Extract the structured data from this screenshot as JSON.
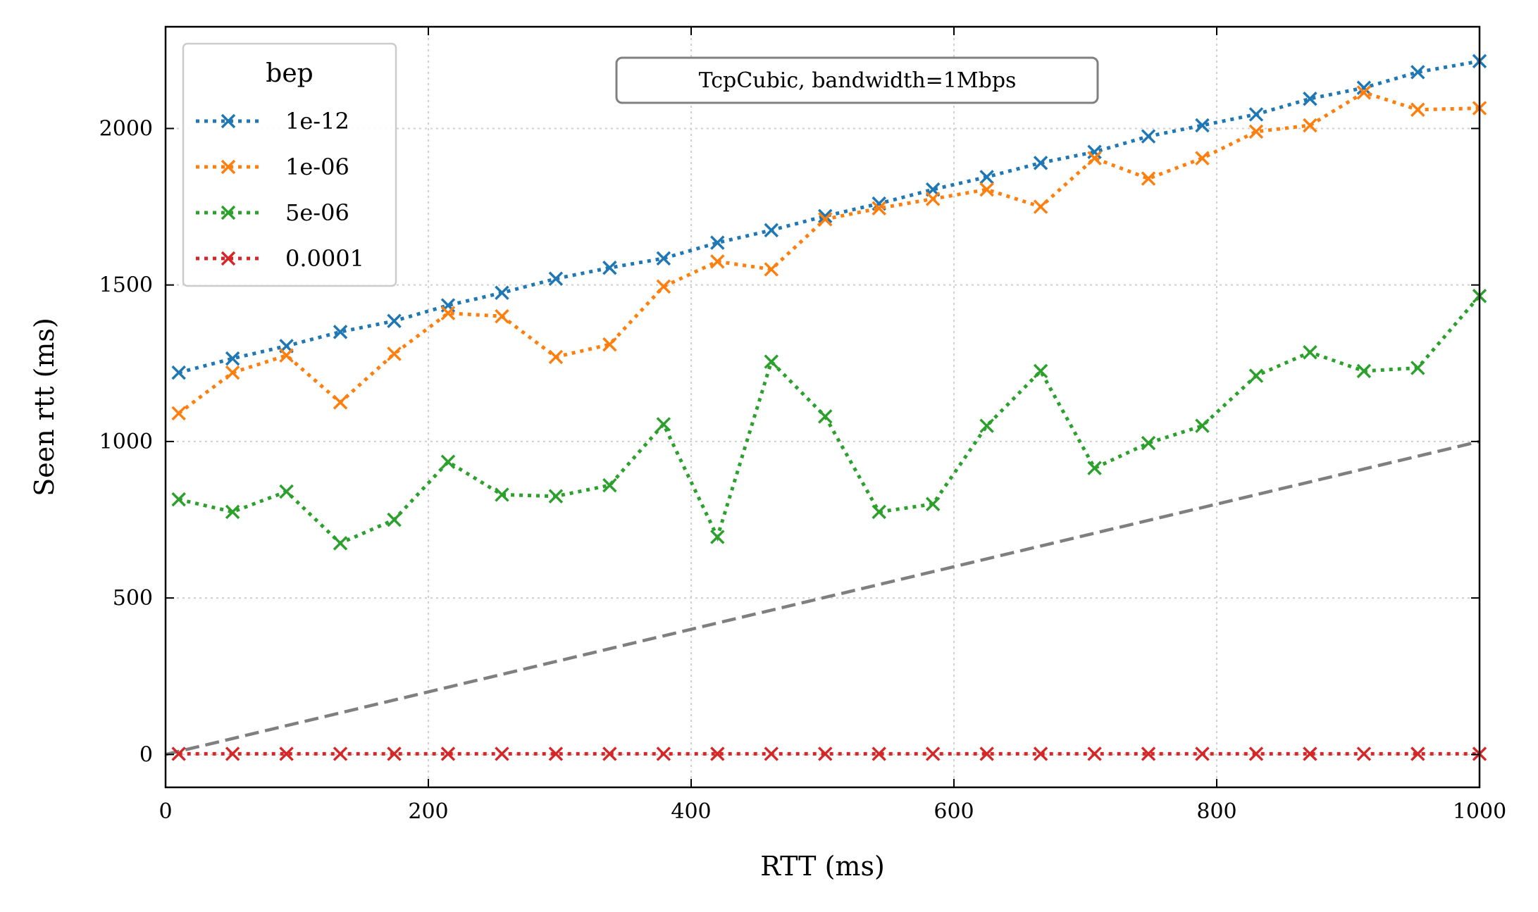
{
  "chart_data": {
    "type": "line",
    "title": "",
    "annotation": "TcpCubic, bandwidth=1Mbps",
    "xlabel": "RTT (ms)",
    "ylabel": "Seen rtt (ms)",
    "xlim": [
      0,
      1000
    ],
    "ylim": [
      -105,
      2325
    ],
    "xticks": [
      0,
      200,
      400,
      600,
      800,
      1000
    ],
    "yticks": [
      0,
      500,
      1000,
      1500,
      2000
    ],
    "grid": true,
    "legend": {
      "title": "bep",
      "placement": "top-left"
    },
    "x": [
      10,
      51,
      92,
      133,
      174,
      215,
      256,
      297,
      338,
      379,
      420,
      461,
      502,
      543,
      584,
      625,
      666,
      707,
      748,
      789,
      830,
      871,
      912,
      953,
      1000
    ],
    "series": [
      {
        "name": "1e-12",
        "color": "#1f77b4",
        "values": [
          1220,
          1265,
          1305,
          1350,
          1385,
          1435,
          1475,
          1520,
          1555,
          1585,
          1635,
          1675,
          1720,
          1760,
          1805,
          1845,
          1890,
          1925,
          1975,
          2010,
          2045,
          2095,
          2130,
          2180,
          2215
        ]
      },
      {
        "name": "1e-06",
        "color": "#ff7f0e",
        "values": [
          1090,
          1220,
          1275,
          1125,
          1280,
          1410,
          1400,
          1270,
          1310,
          1495,
          1575,
          1550,
          1710,
          1745,
          1775,
          1805,
          1750,
          1905,
          1840,
          1905,
          1990,
          2010,
          2115,
          2060,
          2065
        ]
      },
      {
        "name": "5e-06",
        "color": "#2ca02c",
        "values": [
          815,
          775,
          840,
          675,
          750,
          935,
          830,
          825,
          860,
          1055,
          695,
          1255,
          1080,
          775,
          800,
          1050,
          1225,
          915,
          995,
          1050,
          1210,
          1285,
          1225,
          1235,
          1465
        ]
      },
      {
        "name": "0.0001",
        "color": "#d62728",
        "values": [
          2,
          2,
          2,
          2,
          2,
          2,
          2,
          2,
          2,
          2,
          2,
          2,
          2,
          2,
          2,
          2,
          2,
          2,
          2,
          2,
          2,
          2,
          2,
          2,
          2
        ]
      }
    ],
    "reference_line": {
      "x": [
        0,
        1000
      ],
      "y": [
        0,
        1000
      ],
      "color": "#7f7f7f",
      "style": "dashed"
    }
  }
}
